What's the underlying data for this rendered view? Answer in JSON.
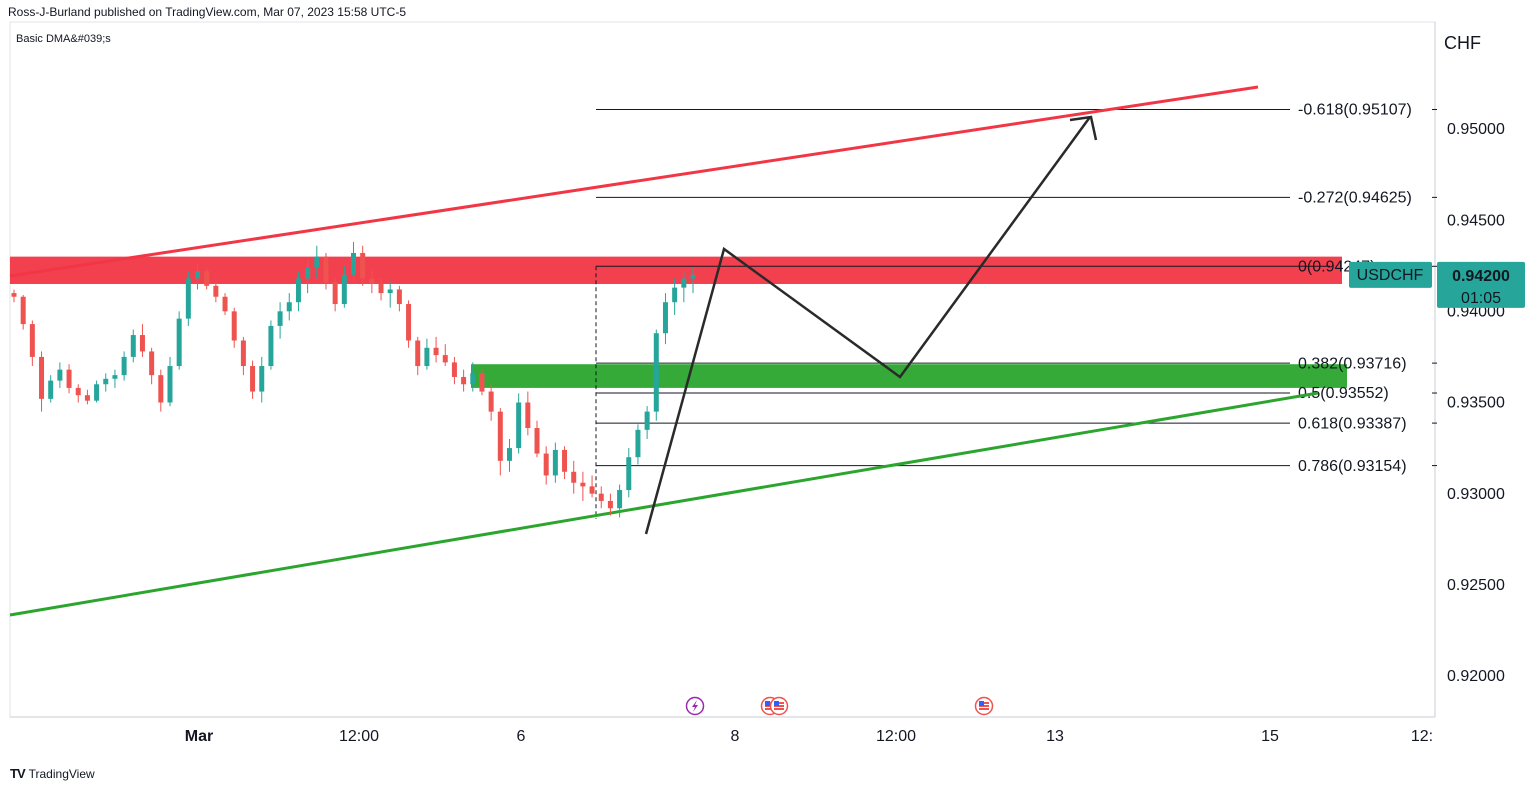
{
  "header": {
    "published": "Ross-J-Burland published on TradingView.com, Mar 07, 2023 15:58 UTC-5",
    "indicator": "Basic DMA&#039;s",
    "currency": "CHF"
  },
  "footer": {
    "brand": "TradingView",
    "logo": "TV"
  },
  "price_tag": {
    "symbol": "USDCHF",
    "price": "0.94200",
    "countdown": "01:05",
    "color": "#26a69a"
  },
  "colors": {
    "resistance": "#f23645",
    "support": "#2ba52e",
    "up": "#26a69a",
    "down": "#ef5350",
    "projection": "#2a2a2a"
  },
  "events": [
    "lightning-icon",
    "us-flag-icon",
    "us-flag-icon",
    "us-flag-icon"
  ],
  "chart_data": {
    "type": "candlestick",
    "y_axis": {
      "ticks": [
        "0.95000",
        "0.94500",
        "0.94000",
        "0.93500",
        "0.93000",
        "0.92500",
        "0.92000"
      ],
      "ylim": [
        0.9185,
        0.9545
      ]
    },
    "x_axis": {
      "ticks": [
        "Mar",
        "12:00",
        "6",
        "8",
        "12:00",
        "13",
        "15",
        "12:"
      ]
    },
    "fib_levels": [
      {
        "label": "-0.618(0.95107)",
        "value": 0.95107
      },
      {
        "label": "-0.272(0.94625)",
        "value": 0.94625
      },
      {
        "label": "0(0.94247)",
        "value": 0.94247
      },
      {
        "label": "0.382(0.93716)",
        "value": 0.93716
      },
      {
        "label": "0.5(0.93552)",
        "value": 0.93552
      },
      {
        "label": "0.618(0.93387)",
        "value": 0.93387
      },
      {
        "label": "0.786(0.93154)",
        "value": 0.93154
      }
    ],
    "zones": [
      {
        "name": "resistance",
        "low": 0.9415,
        "high": 0.943
      },
      {
        "name": "support",
        "low": 0.9358,
        "high": 0.9371
      }
    ],
    "last_price": 0.942,
    "candles": [
      [
        0.941,
        0.9412,
        0.9405,
        0.9408
      ],
      [
        0.9408,
        0.9409,
        0.939,
        0.9393
      ],
      [
        0.9393,
        0.9395,
        0.937,
        0.9375
      ],
      [
        0.9375,
        0.9378,
        0.9345,
        0.9352
      ],
      [
        0.9352,
        0.9365,
        0.935,
        0.9362
      ],
      [
        0.9362,
        0.9372,
        0.9358,
        0.9368
      ],
      [
        0.9368,
        0.9371,
        0.9355,
        0.9358
      ],
      [
        0.9358,
        0.936,
        0.935,
        0.9354
      ],
      [
        0.9354,
        0.9357,
        0.9349,
        0.9351
      ],
      [
        0.9351,
        0.9362,
        0.935,
        0.936
      ],
      [
        0.936,
        0.9366,
        0.9356,
        0.9363
      ],
      [
        0.9363,
        0.9368,
        0.9358,
        0.9365
      ],
      [
        0.9365,
        0.9378,
        0.9362,
        0.9375
      ],
      [
        0.9375,
        0.939,
        0.9372,
        0.9387
      ],
      [
        0.9387,
        0.9393,
        0.9375,
        0.9378
      ],
      [
        0.9378,
        0.938,
        0.936,
        0.9365
      ],
      [
        0.9365,
        0.9368,
        0.9345,
        0.935
      ],
      [
        0.935,
        0.9375,
        0.9348,
        0.937
      ],
      [
        0.937,
        0.94,
        0.9368,
        0.9396
      ],
      [
        0.9396,
        0.9422,
        0.9392,
        0.9418
      ],
      [
        0.9418,
        0.9426,
        0.9412,
        0.9422
      ],
      [
        0.9422,
        0.9424,
        0.9412,
        0.9414
      ],
      [
        0.9414,
        0.9416,
        0.9405,
        0.9408
      ],
      [
        0.9408,
        0.941,
        0.9398,
        0.94
      ],
      [
        0.94,
        0.9402,
        0.938,
        0.9384
      ],
      [
        0.9384,
        0.9386,
        0.9365,
        0.937
      ],
      [
        0.937,
        0.9373,
        0.9352,
        0.9356
      ],
      [
        0.9356,
        0.9375,
        0.935,
        0.937
      ],
      [
        0.937,
        0.9395,
        0.9368,
        0.9392
      ],
      [
        0.9392,
        0.9405,
        0.9385,
        0.94
      ],
      [
        0.94,
        0.941,
        0.9395,
        0.9405
      ],
      [
        0.9405,
        0.9422,
        0.94,
        0.9418
      ],
      [
        0.9418,
        0.9428,
        0.941,
        0.9424
      ],
      [
        0.9424,
        0.9436,
        0.9418,
        0.943
      ],
      [
        0.943,
        0.9432,
        0.9412,
        0.9416
      ],
      [
        0.9416,
        0.9418,
        0.94,
        0.9404
      ],
      [
        0.9404,
        0.9425,
        0.9402,
        0.942
      ],
      [
        0.942,
        0.9438,
        0.9416,
        0.9432
      ],
      [
        0.9432,
        0.9436,
        0.9414,
        0.9418
      ],
      [
        0.9418,
        0.9423,
        0.941,
        0.9415
      ],
      [
        0.9415,
        0.9418,
        0.9406,
        0.941
      ],
      [
        0.941,
        0.9416,
        0.9402,
        0.9412
      ],
      [
        0.9412,
        0.9414,
        0.94,
        0.9404
      ],
      [
        0.9404,
        0.9406,
        0.938,
        0.9384
      ],
      [
        0.9384,
        0.9386,
        0.9365,
        0.937
      ],
      [
        0.937,
        0.9385,
        0.9368,
        0.938
      ],
      [
        0.938,
        0.9386,
        0.9372,
        0.9376
      ],
      [
        0.9376,
        0.9382,
        0.937,
        0.9372
      ],
      [
        0.9372,
        0.9375,
        0.936,
        0.9364
      ],
      [
        0.9364,
        0.9368,
        0.9356,
        0.936
      ],
      [
        0.936,
        0.9372,
        0.9356,
        0.9366
      ],
      [
        0.9366,
        0.9368,
        0.9354,
        0.9356
      ],
      [
        0.9356,
        0.936,
        0.934,
        0.9345
      ],
      [
        0.9345,
        0.9347,
        0.931,
        0.9318
      ],
      [
        0.9318,
        0.933,
        0.9312,
        0.9325
      ],
      [
        0.9325,
        0.9355,
        0.9322,
        0.935
      ],
      [
        0.935,
        0.9356,
        0.9332,
        0.9336
      ],
      [
        0.9336,
        0.934,
        0.932,
        0.9322
      ],
      [
        0.9322,
        0.9326,
        0.9305,
        0.931
      ],
      [
        0.931,
        0.9328,
        0.9306,
        0.9324
      ],
      [
        0.9324,
        0.9326,
        0.9308,
        0.9312
      ],
      [
        0.9312,
        0.9318,
        0.93,
        0.9306
      ],
      [
        0.9306,
        0.9312,
        0.9296,
        0.9304
      ],
      [
        0.9304,
        0.931,
        0.9298,
        0.93
      ],
      [
        0.93,
        0.9304,
        0.9292,
        0.9296
      ],
      [
        0.9296,
        0.93,
        0.9288,
        0.9292
      ],
      [
        0.9292,
        0.9305,
        0.9287,
        0.9302
      ],
      [
        0.9302,
        0.9325,
        0.9298,
        0.932
      ],
      [
        0.932,
        0.9338,
        0.9316,
        0.9335
      ],
      [
        0.9335,
        0.9348,
        0.933,
        0.9345
      ],
      [
        0.9345,
        0.939,
        0.934,
        0.9388
      ],
      [
        0.9388,
        0.941,
        0.9382,
        0.9405
      ],
      [
        0.9405,
        0.9418,
        0.9398,
        0.9413
      ],
      [
        0.9413,
        0.9422,
        0.9405,
        0.9418
      ],
      [
        0.9418,
        0.9424,
        0.941,
        0.942
      ]
    ]
  }
}
